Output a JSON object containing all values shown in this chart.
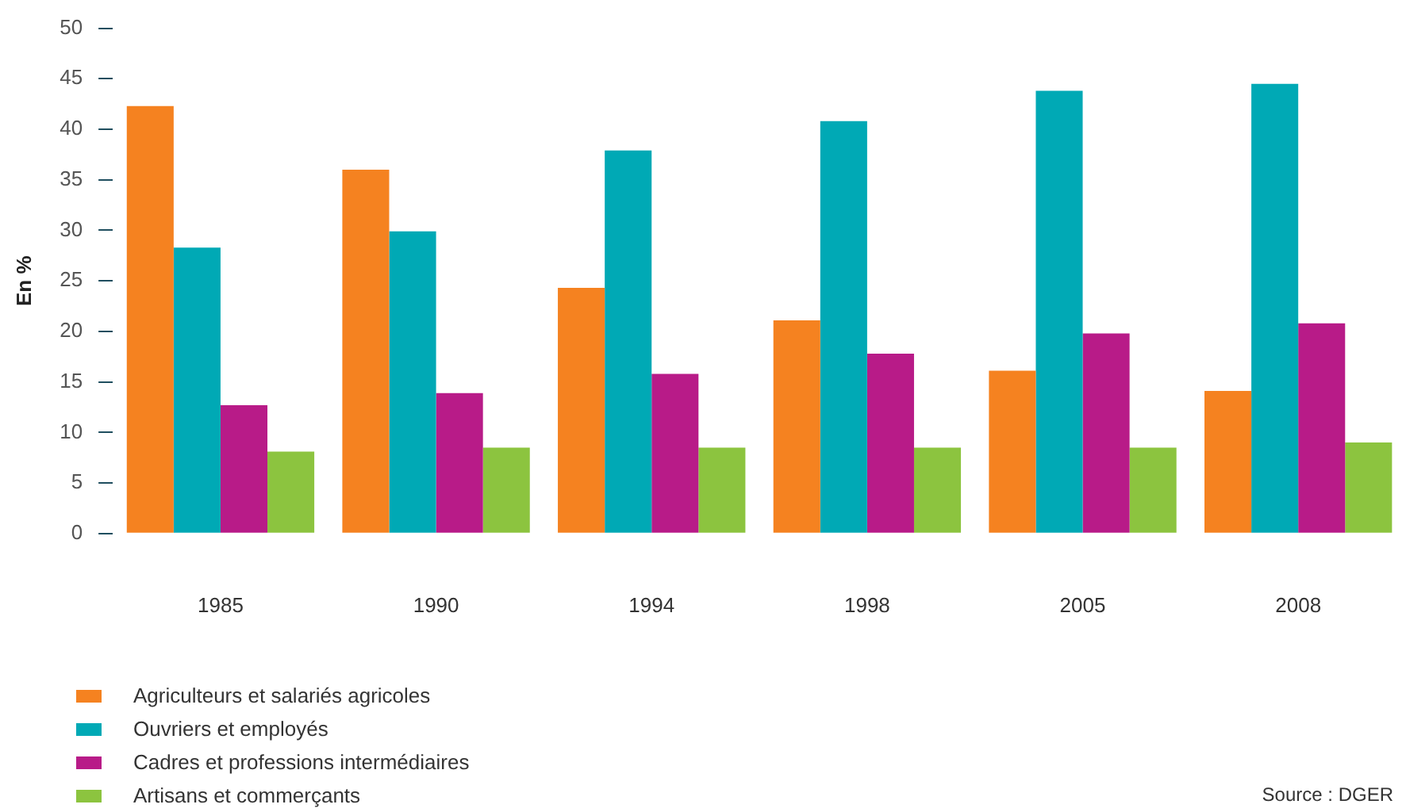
{
  "chart_data": {
    "type": "bar",
    "ylabel": "En %",
    "categories": [
      "1985",
      "1990",
      "1994",
      "1998",
      "2005",
      "2008"
    ],
    "series": [
      {
        "name": "Agriculteurs et salariés agricoles",
        "color": "#f58220",
        "values": [
          42.3,
          36.0,
          24.3,
          21.1,
          16.1,
          14.1
        ]
      },
      {
        "name": "Ouvriers et employés",
        "color": "#00a9b5",
        "values": [
          28.3,
          29.9,
          37.9,
          40.8,
          43.8,
          44.5
        ]
      },
      {
        "name": "Cadres et professions intermédiaires",
        "color": "#b81b88",
        "values": [
          12.7,
          13.9,
          15.8,
          17.8,
          19.8,
          20.8
        ]
      },
      {
        "name": "Artisans et commerçants",
        "color": "#8cc43f",
        "values": [
          8.1,
          8.5,
          8.5,
          8.5,
          8.5,
          9.0
        ]
      }
    ],
    "ylim": [
      0,
      50
    ],
    "yticks": [
      0,
      5,
      10,
      15,
      20,
      25,
      30,
      35,
      40,
      45,
      50
    ],
    "grid": false,
    "legend": "bottom left",
    "annotations": [
      "Source : DGER"
    ]
  }
}
